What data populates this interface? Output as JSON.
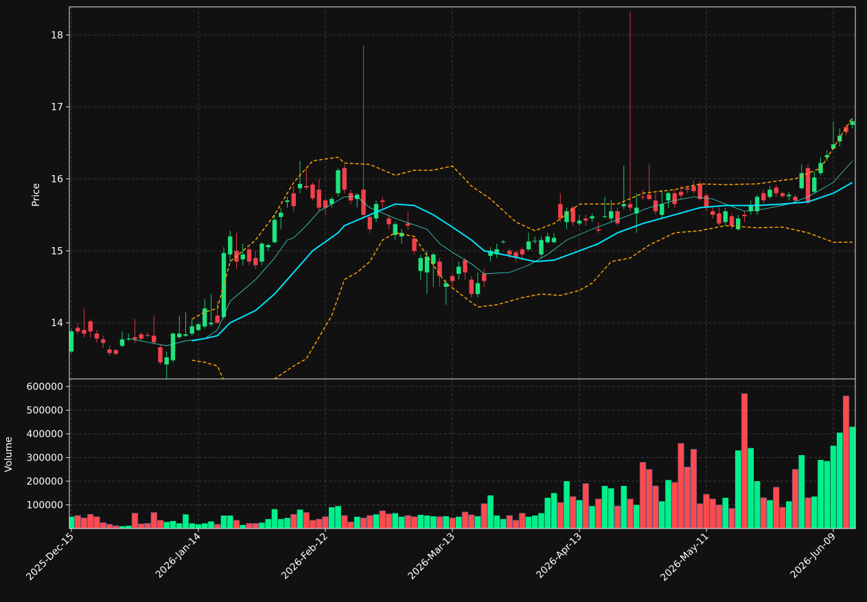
{
  "chart_data": [
    {
      "type": "candlestick",
      "y_label": "Price",
      "ylim": [
        13.22,
        18.39
      ],
      "yticks": [
        14,
        15,
        16,
        17,
        18
      ],
      "grid": true,
      "up_color": "#1ee37c",
      "down_color": "#f0414b",
      "open": [
        13.6,
        13.93,
        13.9,
        14.02,
        13.85,
        13.77,
        13.63,
        13.62,
        13.68,
        13.77,
        13.8,
        13.84,
        13.83,
        13.82,
        13.66,
        13.42,
        13.48,
        13.8,
        13.82,
        13.85,
        13.9,
        13.95,
        13.98,
        14.1,
        14.08,
        14.95,
        15.0,
        14.88,
        15.02,
        14.9,
        14.85,
        15.05,
        15.12,
        15.47,
        15.68,
        15.8,
        15.87,
        15.9,
        15.92,
        15.85,
        15.7,
        15.65,
        15.8,
        16.15,
        15.8,
        15.72,
        15.85,
        15.47,
        15.45,
        15.7,
        15.45,
        15.22,
        15.2,
        15.38,
        15.17,
        14.72,
        14.7,
        14.82,
        14.85,
        14.5,
        14.65,
        14.68,
        14.87,
        14.6,
        14.4,
        14.68,
        14.93,
        14.95,
        15.12,
        15.0,
        14.98,
        15.02,
        15.02,
        15.13,
        14.95,
        15.12,
        15.12,
        15.65,
        15.4,
        15.6,
        15.38,
        15.45,
        15.45,
        15.3,
        15.47,
        15.45,
        15.55,
        15.62,
        15.65,
        15.52,
        15.75,
        15.78,
        15.7,
        15.5,
        15.7,
        15.8,
        15.82,
        15.87,
        15.9,
        15.93,
        15.77,
        15.55,
        15.52,
        15.4,
        15.48,
        15.3,
        15.5,
        15.55,
        15.55,
        15.8,
        15.75,
        15.88,
        15.8,
        15.76,
        15.75,
        15.87,
        16.15,
        15.82,
        16.08,
        16.3,
        16.42,
        16.52,
        16.72,
        16.75
      ],
      "high": [
        13.92,
        14.0,
        14.2,
        14.05,
        13.9,
        13.82,
        13.68,
        13.64,
        13.88,
        13.85,
        14.05,
        13.87,
        13.87,
        14.1,
        13.7,
        13.6,
        13.87,
        14.1,
        14.15,
        14.05,
        14.0,
        14.33,
        14.4,
        14.3,
        15.05,
        15.28,
        15.25,
        15.1,
        15.05,
        15.0,
        15.12,
        15.1,
        15.5,
        15.6,
        15.75,
        15.9,
        16.25,
        16.15,
        15.95,
        16.0,
        15.73,
        15.75,
        16.15,
        16.2,
        15.85,
        15.8,
        17.85,
        15.5,
        15.7,
        15.75,
        15.5,
        15.4,
        15.3,
        15.55,
        15.2,
        14.95,
        15.0,
        14.97,
        14.9,
        14.6,
        14.68,
        14.85,
        14.9,
        14.65,
        14.7,
        14.75,
        15.05,
        15.1,
        15.15,
        15.03,
        15.0,
        15.05,
        15.25,
        15.2,
        15.2,
        15.25,
        15.25,
        15.8,
        15.6,
        15.62,
        15.5,
        15.5,
        15.52,
        15.4,
        15.75,
        15.7,
        15.6,
        16.18,
        18.32,
        15.8,
        15.85,
        16.2,
        15.8,
        15.85,
        15.82,
        15.85,
        15.9,
        15.9,
        15.98,
        15.97,
        15.8,
        15.6,
        15.6,
        15.6,
        15.52,
        15.5,
        15.55,
        15.7,
        15.78,
        15.85,
        15.9,
        15.92,
        15.82,
        15.82,
        15.78,
        16.2,
        16.2,
        16.1,
        16.3,
        16.4,
        16.8,
        16.7,
        16.75,
        16.85
      ],
      "low": [
        13.58,
        13.85,
        13.8,
        13.8,
        13.72,
        13.65,
        13.54,
        13.55,
        13.66,
        13.75,
        13.72,
        13.75,
        13.8,
        13.7,
        13.42,
        13.22,
        13.45,
        13.78,
        13.8,
        13.82,
        13.88,
        13.92,
        13.95,
        13.98,
        14.05,
        14.85,
        14.75,
        14.8,
        14.8,
        14.75,
        14.8,
        15.0,
        15.1,
        15.3,
        15.6,
        15.55,
        15.8,
        15.85,
        15.7,
        15.55,
        15.5,
        15.6,
        15.75,
        15.8,
        15.65,
        15.6,
        15.45,
        15.25,
        15.4,
        15.6,
        15.3,
        15.15,
        15.1,
        15.3,
        14.95,
        14.6,
        14.4,
        14.5,
        14.5,
        14.25,
        14.5,
        14.6,
        14.6,
        14.35,
        14.35,
        14.5,
        14.85,
        14.9,
        15.1,
        14.9,
        14.85,
        14.9,
        15.0,
        15.1,
        14.9,
        15.1,
        15.1,
        15.4,
        15.3,
        15.35,
        15.35,
        15.35,
        15.4,
        15.25,
        15.45,
        15.4,
        15.35,
        15.58,
        15.55,
        15.25,
        15.7,
        15.7,
        15.5,
        15.45,
        15.6,
        15.6,
        15.72,
        15.8,
        15.8,
        15.7,
        15.55,
        15.45,
        15.35,
        15.35,
        15.3,
        15.28,
        15.4,
        15.5,
        15.5,
        15.65,
        15.72,
        15.75,
        15.74,
        15.7,
        15.65,
        15.85,
        15.65,
        15.8,
        16.05,
        16.25,
        16.4,
        16.45,
        16.6,
        16.7
      ],
      "close": [
        13.88,
        13.88,
        13.85,
        13.88,
        13.78,
        13.72,
        13.58,
        13.57,
        13.77,
        13.78,
        13.77,
        13.78,
        13.82,
        13.73,
        13.45,
        13.52,
        13.85,
        13.85,
        13.84,
        13.95,
        13.98,
        14.2,
        14.0,
        14.0,
        14.97,
        15.2,
        14.85,
        14.95,
        14.85,
        14.8,
        15.1,
        15.08,
        15.43,
        15.53,
        15.7,
        15.62,
        15.93,
        15.88,
        15.73,
        15.6,
        15.6,
        15.72,
        16.12,
        15.85,
        15.7,
        15.78,
        15.5,
        15.3,
        15.65,
        15.68,
        15.37,
        15.37,
        15.25,
        15.35,
        15.0,
        14.9,
        14.92,
        14.95,
        14.65,
        14.55,
        14.58,
        14.78,
        14.7,
        14.4,
        14.55,
        14.58,
        15.0,
        15.02,
        15.13,
        14.95,
        14.9,
        14.95,
        15.13,
        15.14,
        15.15,
        15.2,
        15.18,
        15.45,
        15.55,
        15.4,
        15.42,
        15.42,
        15.48,
        15.28,
        15.48,
        15.55,
        15.38,
        15.65,
        15.6,
        15.6,
        15.74,
        15.72,
        15.55,
        15.65,
        15.8,
        15.65,
        15.77,
        15.85,
        15.83,
        15.72,
        15.6,
        15.5,
        15.38,
        15.55,
        15.35,
        15.45,
        15.48,
        15.63,
        15.75,
        15.7,
        15.85,
        15.8,
        15.76,
        15.78,
        15.7,
        16.08,
        15.67,
        16.02,
        16.22,
        16.33,
        16.48,
        16.6,
        16.65,
        16.8
      ],
      "overlays": [
        {
          "color": "#40e0d0",
          "width": 0.8,
          "dashed": false,
          "x": [
            9,
            12,
            15,
            18,
            21,
            23,
            25,
            29,
            32,
            34,
            35,
            37,
            39,
            43,
            45,
            47,
            51,
            56,
            58,
            60,
            63,
            65,
            69,
            72,
            75,
            78,
            82,
            85,
            88,
            91,
            95,
            98,
            101,
            103,
            106,
            109,
            113,
            116,
            120,
            123
          ],
          "values": [
            13.78,
            13.73,
            13.68,
            13.75,
            13.78,
            13.9,
            14.3,
            14.6,
            14.9,
            15.15,
            15.18,
            15.35,
            15.55,
            15.75,
            15.75,
            15.6,
            15.45,
            15.3,
            15.1,
            14.98,
            14.82,
            14.68,
            14.7,
            14.8,
            14.95,
            15.15,
            15.3,
            15.4,
            15.5,
            15.6,
            15.7,
            15.75,
            15.72,
            15.65,
            15.55,
            15.58,
            15.65,
            15.75,
            15.95,
            16.25
          ]
        },
        {
          "color": "#00e5ff",
          "width": 2,
          "dashed": false,
          "x": [
            19,
            21,
            23,
            25,
            29,
            32,
            35,
            38,
            42,
            43,
            47,
            51,
            54,
            57,
            60,
            63,
            65,
            69,
            73,
            76,
            80,
            83,
            86,
            90,
            95,
            99,
            103,
            108,
            112,
            116,
            120,
            123
          ],
          "values": [
            13.75,
            13.78,
            13.82,
            14.0,
            14.17,
            14.4,
            14.7,
            15.0,
            15.25,
            15.35,
            15.5,
            15.65,
            15.63,
            15.5,
            15.33,
            15.15,
            15.0,
            14.93,
            14.85,
            14.87,
            15.0,
            15.1,
            15.25,
            15.38,
            15.5,
            15.6,
            15.63,
            15.63,
            15.65,
            15.68,
            15.8,
            15.95
          ]
        },
        {
          "color": "#ffa500",
          "width": 1.5,
          "dashed": true,
          "x": [
            19,
            21,
            23,
            25,
            29,
            32,
            35,
            38,
            42,
            43,
            47,
            51,
            54,
            57,
            60,
            63,
            66,
            70,
            73,
            76,
            80,
            83,
            86,
            90,
            95,
            99,
            103,
            108,
            112,
            114,
            118,
            123
          ],
          "values": [
            14.05,
            14.15,
            14.2,
            14.85,
            15.15,
            15.5,
            15.95,
            16.25,
            16.3,
            16.22,
            16.2,
            16.05,
            16.12,
            16.12,
            16.18,
            15.9,
            15.72,
            15.4,
            15.28,
            15.38,
            15.65,
            15.65,
            15.65,
            15.8,
            15.85,
            15.93,
            15.92,
            15.93,
            15.98,
            16.0,
            16.15,
            16.85
          ]
        },
        {
          "color": "#ffa500",
          "width": 1.5,
          "dashed": true,
          "x": [
            19,
            21,
            23,
            24,
            26,
            28,
            30,
            32,
            35,
            37,
            41,
            43,
            45,
            47,
            49,
            51,
            54,
            57,
            59,
            62,
            64,
            67,
            71,
            74,
            77,
            80,
            82,
            85,
            88,
            91,
            95,
            99,
            103,
            108,
            112,
            116,
            120,
            123
          ],
          "values": [
            13.48,
            13.45,
            13.4,
            13.2,
            12.9,
            12.6,
            12.9,
            13.22,
            13.4,
            13.5,
            14.1,
            14.6,
            14.7,
            14.85,
            15.15,
            15.25,
            15.2,
            14.8,
            14.55,
            14.35,
            14.22,
            14.25,
            14.35,
            14.4,
            14.38,
            14.45,
            14.55,
            14.85,
            14.9,
            15.08,
            15.25,
            15.28,
            15.35,
            15.32,
            15.33,
            15.25,
            15.12,
            15.12
          ]
        }
      ]
    },
    {
      "type": "bar",
      "y_label": "Volume",
      "ylim": [
        0,
        632000
      ],
      "yticks": [
        100000,
        200000,
        300000,
        400000,
        500000,
        600000
      ],
      "grid": true,
      "up_color": "#00f08c",
      "down_color": "#ff4b4b",
      "categories": [
        "2025-Dec-15",
        null,
        null,
        null,
        null,
        null,
        null,
        null,
        null,
        null,
        null,
        null,
        null,
        null,
        null,
        null,
        null,
        null,
        null,
        null,
        "2026-Jan-14",
        null,
        null,
        null,
        null,
        null,
        null,
        null,
        null,
        null,
        null,
        null,
        null,
        null,
        null,
        null,
        null,
        null,
        null,
        null,
        "2026-Feb-12",
        null,
        null,
        null,
        null,
        null,
        null,
        null,
        null,
        null,
        null,
        null,
        null,
        null,
        null,
        null,
        null,
        null,
        null,
        null,
        "2026-Mar-13",
        null,
        null,
        null,
        null,
        null,
        null,
        null,
        null,
        null,
        null,
        null,
        null,
        null,
        null,
        null,
        null,
        null,
        null,
        null,
        "2026-Apr-13",
        null,
        null,
        null,
        null,
        null,
        null,
        null,
        null,
        null,
        null,
        null,
        null,
        null,
        null,
        null,
        null,
        null,
        null,
        null,
        "2026-May-11",
        null,
        null,
        null,
        null,
        null,
        null,
        null,
        null,
        null,
        null,
        null,
        null,
        null,
        null,
        null,
        null,
        null,
        null,
        null,
        "2026-Jun-09",
        null,
        null,
        null
      ],
      "values": [
        50000,
        55000,
        45000,
        60000,
        50000,
        25000,
        18000,
        12000,
        10000,
        12000,
        65000,
        20000,
        22000,
        68000,
        35000,
        28000,
        32000,
        22000,
        60000,
        22000,
        18000,
        22000,
        30000,
        18000,
        55000,
        55000,
        35000,
        15000,
        22000,
        22000,
        25000,
        40000,
        82000,
        40000,
        45000,
        60000,
        80000,
        68000,
        35000,
        40000,
        50000,
        90000,
        95000,
        55000,
        28000,
        50000,
        45000,
        55000,
        60000,
        75000,
        62000,
        65000,
        50000,
        55000,
        50000,
        58000,
        55000,
        52000,
        50000,
        52000,
        45000,
        50000,
        70000,
        58000,
        52000,
        105000,
        140000,
        55000,
        40000,
        55000,
        35000,
        65000,
        50000,
        55000,
        65000,
        130000,
        150000,
        110000,
        200000,
        135000,
        120000,
        190000,
        95000,
        125000,
        180000,
        170000,
        95000,
        180000,
        125000,
        100000,
        280000,
        250000,
        180000,
        115000,
        205000,
        195000,
        360000,
        260000,
        335000,
        105000,
        145000,
        125000,
        100000,
        130000,
        85000,
        330000,
        570000,
        340000,
        200000,
        130000,
        120000,
        175000,
        90000,
        115000,
        250000,
        310000,
        130000,
        135000,
        290000,
        285000,
        350000,
        405000,
        560000,
        430000
      ]
    }
  ]
}
